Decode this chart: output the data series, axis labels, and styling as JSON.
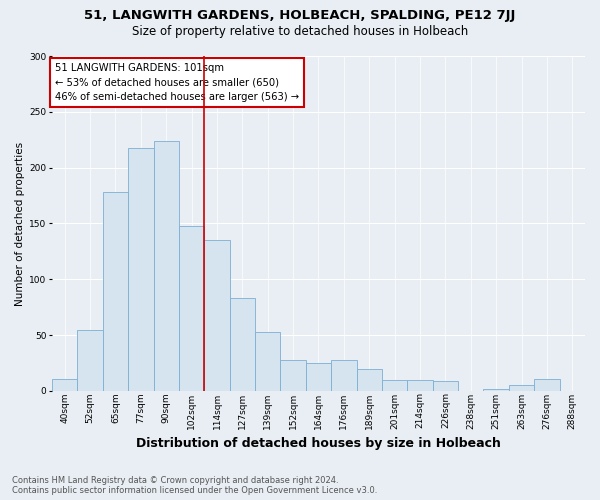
{
  "title": "51, LANGWITH GARDENS, HOLBEACH, SPALDING, PE12 7JJ",
  "subtitle": "Size of property relative to detached houses in Holbeach",
  "xlabel": "Distribution of detached houses by size in Holbeach",
  "ylabel": "Number of detached properties",
  "footnote1": "Contains HM Land Registry data © Crown copyright and database right 2024.",
  "footnote2": "Contains public sector information licensed under the Open Government Licence v3.0.",
  "annotation_line1": "51 LANGWITH GARDENS: 101sqm",
  "annotation_line2": "← 53% of detached houses are smaller (650)",
  "annotation_line3": "46% of semi-detached houses are larger (563) →",
  "bar_color": "#d6e4f0",
  "bar_edge_color": "#7bafd4",
  "vline_color": "#cc0000",
  "vline_x_index": 5,
  "categories": [
    "40sqm",
    "52sqm",
    "65sqm",
    "77sqm",
    "90sqm",
    "102sqm",
    "114sqm",
    "127sqm",
    "139sqm",
    "152sqm",
    "164sqm",
    "176sqm",
    "189sqm",
    "201sqm",
    "214sqm",
    "226sqm",
    "238sqm",
    "251sqm",
    "263sqm",
    "276sqm",
    "288sqm"
  ],
  "values": [
    11,
    55,
    178,
    218,
    224,
    148,
    135,
    83,
    53,
    28,
    25,
    28,
    20,
    10,
    10,
    9,
    0,
    2,
    5,
    11,
    0
  ],
  "ylim": [
    0,
    300
  ],
  "yticks": [
    0,
    50,
    100,
    150,
    200,
    250,
    300
  ],
  "background_color": "#e8eef4",
  "grid_color": "#ffffff",
  "title_fontsize": 9.5,
  "subtitle_fontsize": 8.5,
  "annotation_fontsize": 7.2,
  "ylabel_fontsize": 7.5,
  "xlabel_fontsize": 9,
  "tick_fontsize": 6.5,
  "footnote_fontsize": 6.0
}
